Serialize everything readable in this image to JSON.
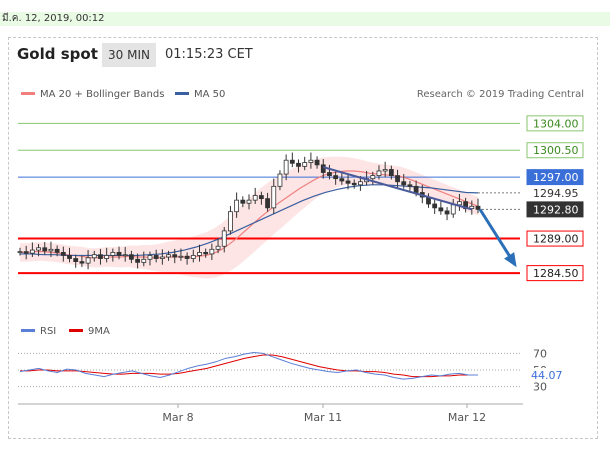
{
  "topbar": {
    "text": "มี.ค. 12, 2019, 00:12"
  },
  "header": {
    "title": "Gold spot",
    "timeframe": "30 MIN",
    "time": "01:15:23 CET"
  },
  "legend": {
    "item1": "MA 20 + Bollinger Bands",
    "item2": "MA 50",
    "credit": "Research © 2019 Trading Central"
  },
  "rsi_legend": {
    "item1": "RSI",
    "item2": "9MA"
  },
  "colors": {
    "ma20": "#f08080",
    "ma50": "#3a5fa0",
    "bands": "#fde0e0",
    "candle": "#333333",
    "resistance": "#88c66e",
    "support": "#ff0000",
    "pivot": "#3b6fd8",
    "arrow": "#2a6fb8",
    "rsi": "#5b7fd6",
    "rsi_ma": "#e00000"
  },
  "chart_data": [
    {
      "type": "candlestick",
      "ylim": [
        1281,
        1306
      ],
      "x_ticks": [
        "Mar 8",
        "Mar 11",
        "Mar 12"
      ],
      "levels": [
        {
          "value": 1304.0,
          "label": "1304.00",
          "kind": "resistance"
        },
        {
          "value": 1300.5,
          "label": "1300.50",
          "kind": "resistance"
        },
        {
          "value": 1297.0,
          "label": "1297.00",
          "kind": "pivot"
        },
        {
          "value": 1294.95,
          "label": "1294.95",
          "kind": "ma"
        },
        {
          "value": 1292.8,
          "label": "1292.80",
          "kind": "last"
        },
        {
          "value": 1289.0,
          "label": "1289.00",
          "kind": "support"
        },
        {
          "value": 1284.5,
          "label": "1284.50",
          "kind": "support"
        }
      ],
      "close": [
        1287.3,
        1287.1,
        1287.5,
        1287.8,
        1287.4,
        1287.6,
        1287.2,
        1286.8,
        1286.4,
        1286.0,
        1285.8,
        1286.5,
        1286.9,
        1286.4,
        1286.8,
        1287.2,
        1286.8,
        1286.9,
        1286.3,
        1285.9,
        1286.3,
        1286.8,
        1286.4,
        1286.6,
        1286.9,
        1286.6,
        1286.7,
        1286.4,
        1286.8,
        1287.2,
        1287.0,
        1287.6,
        1288.0,
        1290.0,
        1292.5,
        1294.0,
        1293.6,
        1294.0,
        1294.6,
        1294.2,
        1293.0,
        1295.8,
        1297.4,
        1299.2,
        1298.8,
        1298.4,
        1298.9,
        1299.2,
        1298.6,
        1297.6,
        1297.2,
        1296.8,
        1296.5,
        1296.2,
        1296.0,
        1296.4,
        1296.8,
        1297.2,
        1297.8,
        1298.0,
        1297.2,
        1296.4,
        1296.0,
        1295.8,
        1295.0,
        1294.4,
        1293.5,
        1293.0,
        1292.6,
        1292.2,
        1293.4,
        1293.8,
        1292.9,
        1293.2,
        1292.8
      ],
      "ma20": [
        1287.2,
        1287.2,
        1287.3,
        1287.3,
        1287.2,
        1287.1,
        1286.9,
        1286.8,
        1286.7,
        1286.5,
        1286.5,
        1286.6,
        1286.6,
        1286.6,
        1286.7,
        1286.6,
        1286.6,
        1286.5,
        1286.5,
        1286.6,
        1286.6,
        1286.6,
        1286.6,
        1286.7,
        1286.8,
        1287.1,
        1287.6,
        1288.3,
        1289.1,
        1290.0,
        1290.9,
        1291.8,
        1292.6,
        1293.4,
        1294.1,
        1294.8,
        1295.5,
        1296.1,
        1296.7,
        1297.2,
        1297.5,
        1297.7,
        1297.8,
        1297.8,
        1297.7,
        1297.5,
        1297.4,
        1297.3,
        1297.2,
        1297.1,
        1296.8,
        1296.4,
        1296.0,
        1295.6,
        1295.2,
        1294.8,
        1294.4,
        1294.0,
        1293.6,
        1293.2
      ],
      "ma50": [
        1287.0,
        1287.0,
        1286.9,
        1286.9,
        1286.8,
        1286.8,
        1286.8,
        1286.8,
        1286.8,
        1286.8,
        1286.8,
        1286.9,
        1287.0,
        1287.2,
        1287.5,
        1287.9,
        1288.4,
        1289.0,
        1289.7,
        1290.4,
        1291.1,
        1291.8,
        1292.5,
        1293.2,
        1293.9,
        1294.5,
        1295.0,
        1295.4,
        1295.7,
        1295.9,
        1296.0,
        1296.0,
        1295.9,
        1295.8,
        1295.7,
        1295.6,
        1295.4,
        1295.2,
        1295.0,
        1294.95
      ],
      "rsi": [
        48,
        50,
        52,
        49,
        47,
        51,
        50,
        46,
        44,
        42,
        45,
        47,
        49,
        46,
        43,
        41,
        44,
        48,
        52,
        55,
        57,
        60,
        64,
        66,
        69,
        71,
        70,
        66,
        62,
        58,
        55,
        52,
        50,
        48,
        47,
        49,
        50,
        47,
        45,
        44,
        41,
        39,
        40,
        42,
        44,
        43,
        45,
        46,
        44,
        44.07
      ],
      "rsi_ma": [
        49,
        49,
        50,
        50,
        49,
        49,
        49,
        48,
        47,
        46,
        45,
        45,
        46,
        46,
        46,
        45,
        45,
        46,
        48,
        50,
        52,
        55,
        58,
        61,
        64,
        66,
        68,
        68,
        66,
        63,
        60,
        57,
        54,
        52,
        50,
        49,
        49,
        48,
        48,
        47,
        45,
        44,
        42,
        42,
        42,
        43,
        43,
        44,
        44,
        44
      ],
      "rsi_ticks": [
        "70",
        "50",
        "30"
      ],
      "rsi_last": "44.07"
    }
  ]
}
